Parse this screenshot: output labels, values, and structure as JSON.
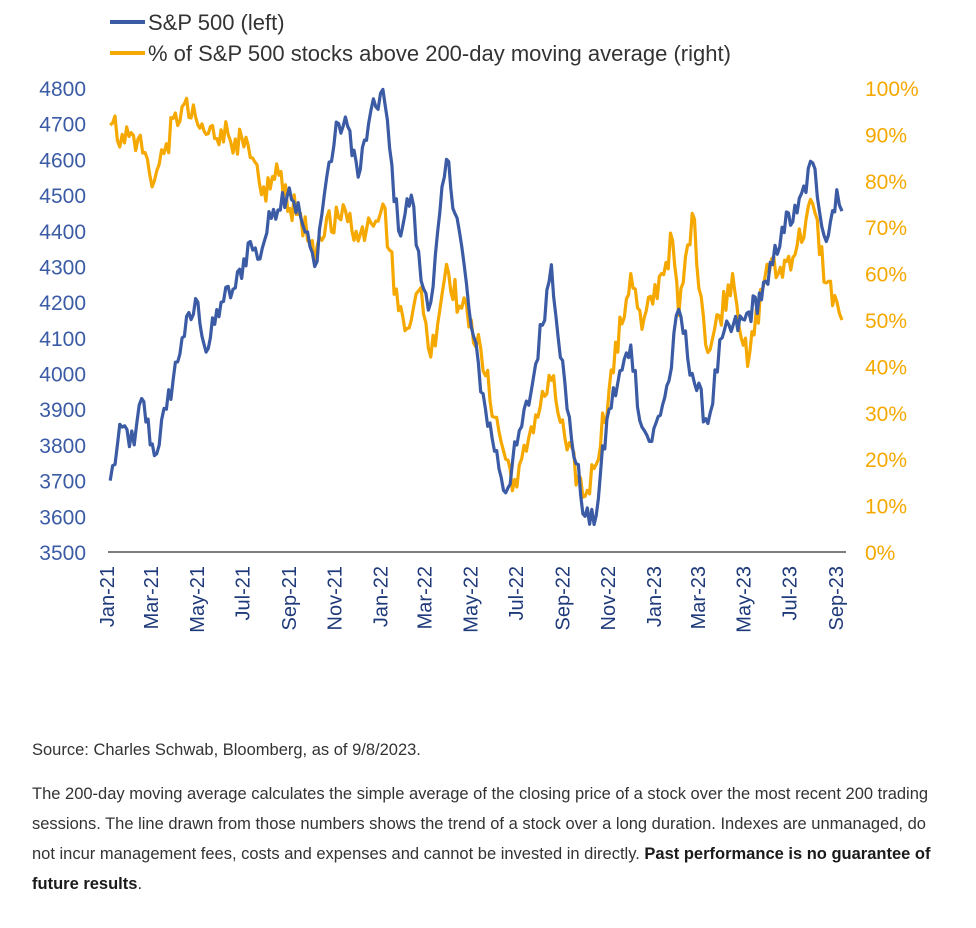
{
  "chart_data": {
    "type": "line",
    "xlabel": "",
    "x_tick_labels": [
      "Jan-21",
      "Mar-21",
      "May-21",
      "Jul-21",
      "Sep-21",
      "Nov-21",
      "Jan-22",
      "Mar-22",
      "May-22",
      "Jul-22",
      "Sep-22",
      "Nov-22",
      "Jan-23",
      "Mar-23",
      "May-23",
      "Jul-23",
      "Sep-23"
    ],
    "y_left": {
      "ticks": [
        3500,
        3600,
        3700,
        3800,
        3900,
        4000,
        4100,
        4200,
        4300,
        4400,
        4500,
        4600,
        4700,
        4800
      ],
      "ylim": [
        3500,
        4800
      ]
    },
    "y_right": {
      "ticks": [
        "0%",
        "10%",
        "20%",
        "30%",
        "40%",
        "50%",
        "60%",
        "70%",
        "80%",
        "90%",
        "100%"
      ],
      "ylim": [
        0,
        100
      ]
    },
    "grid": false,
    "legend_position": "top-left",
    "series": [
      {
        "name": "S&P 500 (left)",
        "axis": "left",
        "color": "#3b5ba5",
        "x": [
          "2021-01-04",
          "2021-01-20",
          "2021-02-05",
          "2021-02-15",
          "2021-03-04",
          "2021-03-20",
          "2021-04-10",
          "2021-05-01",
          "2021-05-12",
          "2021-06-01",
          "2021-06-20",
          "2021-07-10",
          "2021-07-20",
          "2021-08-10",
          "2021-08-31",
          "2021-09-15",
          "2021-10-04",
          "2021-10-20",
          "2021-11-05",
          "2021-11-20",
          "2021-12-01",
          "2021-12-15",
          "2022-01-03",
          "2022-01-24",
          "2022-02-10",
          "2022-02-23",
          "2022-03-08",
          "2022-03-29",
          "2022-04-15",
          "2022-05-01",
          "2022-05-20",
          "2022-06-16",
          "2022-07-01",
          "2022-07-20",
          "2022-08-16",
          "2022-09-06",
          "2022-09-30",
          "2022-10-12",
          "2022-11-01",
          "2022-11-30",
          "2022-12-15",
          "2022-12-28",
          "2023-01-20",
          "2023-02-02",
          "2023-02-20",
          "2023-03-13",
          "2023-04-01",
          "2023-05-01",
          "2023-06-01",
          "2023-06-20",
          "2023-07-10",
          "2023-07-31",
          "2023-08-18",
          "2023-09-01",
          "2023-09-08"
        ],
        "values": [
          3700,
          3850,
          3800,
          3930,
          3770,
          3900,
          4100,
          4200,
          4060,
          4200,
          4240,
          4370,
          4320,
          4460,
          4520,
          4440,
          4300,
          4550,
          4700,
          4680,
          4550,
          4700,
          4796,
          4400,
          4500,
          4260,
          4200,
          4600,
          4400,
          4130,
          3900,
          3666,
          3800,
          3950,
          4305,
          3900,
          3600,
          3577,
          3900,
          4080,
          3850,
          3810,
          3980,
          4180,
          4000,
          3860,
          4100,
          4150,
          4250,
          4410,
          4450,
          4590,
          4370,
          4515,
          4455
        ]
      },
      {
        "name": "% of S&P 500 stocks above 200-day moving average (right)",
        "axis": "right",
        "color": "#f5a800",
        "x": [
          "2021-01-04",
          "2021-01-20",
          "2021-02-10",
          "2021-03-04",
          "2021-03-20",
          "2021-04-10",
          "2021-05-01",
          "2021-05-12",
          "2021-06-01",
          "2021-06-20",
          "2021-07-10",
          "2021-07-25",
          "2021-08-20",
          "2021-09-01",
          "2021-09-15",
          "2021-10-04",
          "2021-10-20",
          "2021-11-05",
          "2021-11-20",
          "2021-12-01",
          "2021-12-15",
          "2022-01-03",
          "2022-01-24",
          "2022-02-10",
          "2022-02-23",
          "2022-03-08",
          "2022-03-29",
          "2022-04-15",
          "2022-05-01",
          "2022-05-20",
          "2022-06-16",
          "2022-07-01",
          "2022-07-20",
          "2022-08-16",
          "2022-09-06",
          "2022-09-30",
          "2022-10-12",
          "2022-11-01",
          "2022-11-30",
          "2022-12-15",
          "2023-01-10",
          "2023-01-25",
          "2023-02-02",
          "2023-02-20",
          "2023-03-13",
          "2023-04-15",
          "2023-05-05",
          "2023-05-31",
          "2023-06-15",
          "2023-07-10",
          "2023-07-31",
          "2023-08-18",
          "2023-09-01",
          "2023-09-08"
        ],
        "values": [
          92,
          90,
          89,
          80,
          88,
          96,
          92,
          90,
          91,
          89,
          85,
          77,
          82,
          74,
          73,
          62,
          72,
          72,
          73,
          67,
          72,
          75,
          52,
          50,
          57,
          42,
          62,
          53,
          50,
          38,
          20,
          14,
          27,
          37,
          22,
          12,
          18,
          35,
          60,
          48,
          60,
          67,
          51,
          73,
          43,
          60,
          40,
          62,
          60,
          66,
          75,
          58,
          54,
          50
        ]
      }
    ]
  },
  "legend": {
    "items": [
      {
        "label": "S&P 500 (left)",
        "color": "#3b5ba5"
      },
      {
        "label": "% of S&P 500 stocks above 200-day moving average (right)",
        "color": "#f5a800"
      }
    ]
  },
  "notes": {
    "source": "Source: Charles Schwab, Bloomberg, as of 9/8/2023.",
    "body": "The 200-day moving average calculates the simple average of the closing price of a stock over the most recent 200 trading sessions. The line drawn from those numbers shows the trend of a stock over a long duration. Indexes are unmanaged, do not incur management fees, costs and expenses and cannot be invested in directly.",
    "disclaimer": "Past performance is no guarantee of future results",
    "disclaimer_end": "."
  }
}
